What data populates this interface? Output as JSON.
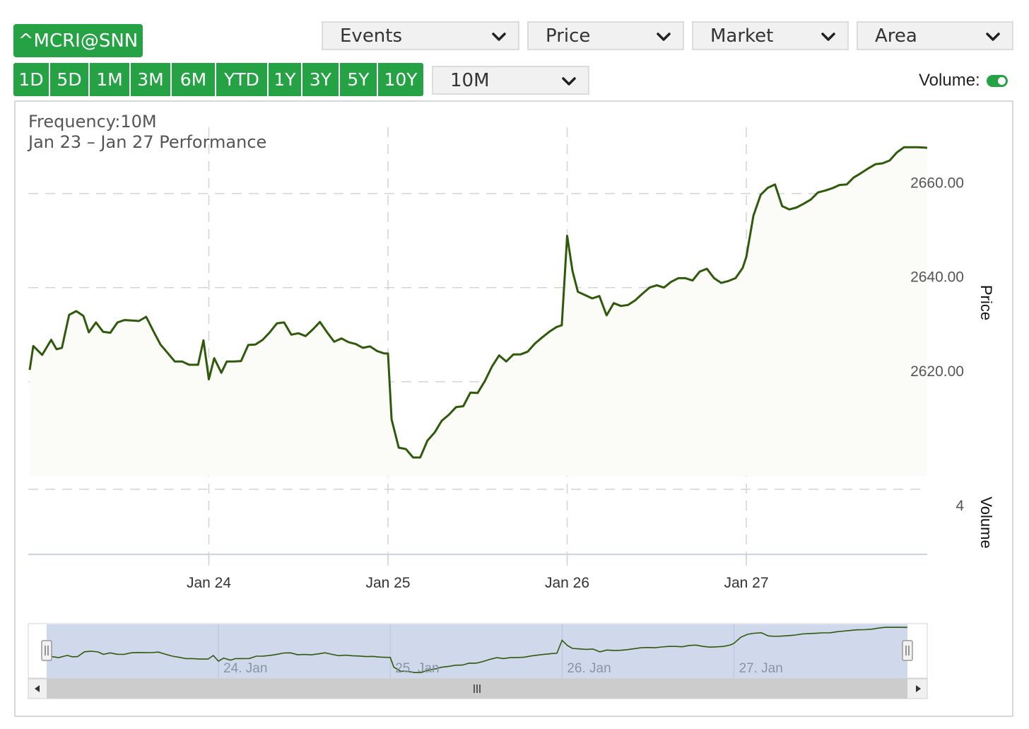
{
  "symbol": "^MCRI@SNN",
  "ranges": [
    "1D",
    "5D",
    "1M",
    "3M",
    "6M",
    "YTD",
    "1Y",
    "3Y",
    "5Y",
    "10Y"
  ],
  "dropdowns": {
    "events": "Events",
    "price": "Price",
    "market": "Market",
    "area": "Area",
    "frequency": "10M"
  },
  "volume_toggle": {
    "label": "Volume:",
    "on": true
  },
  "colors": {
    "accent": "#25a244",
    "line": "#2f5a0c",
    "navigator_fill": "#d0d9ec"
  },
  "chart_data": {
    "type": "area",
    "title": "Frequency:10M",
    "subtitle": "Jan 23 – Jan 27 Performance",
    "xlabel": "",
    "ylabel": "Price",
    "volume_label": "Volume",
    "volume_tick": "4",
    "ylim": [
      2600,
      2670
    ],
    "y_ticks": [
      "2620.00",
      "2640.00",
      "2660.00"
    ],
    "y_tick_values": [
      2620,
      2640,
      2660
    ],
    "x_ticks": [
      "Jan 24",
      "Jan 25",
      "Jan 26",
      "Jan 27"
    ],
    "x_tick_values": [
      1,
      2,
      3,
      4
    ],
    "grid": true,
    "navigator_labels": [
      "24. Jan",
      "25. Jan",
      "26. Jan",
      "27. Jan"
    ],
    "series": [
      {
        "values": [
          [
            0.0,
            2622.5
          ],
          [
            0.02,
            2627.6
          ],
          [
            0.07,
            2625.7
          ],
          [
            0.12,
            2628.9
          ],
          [
            0.15,
            2626.9
          ],
          [
            0.18,
            2627.2
          ],
          [
            0.22,
            2634.2
          ],
          [
            0.26,
            2635.0
          ],
          [
            0.3,
            2634.0
          ],
          [
            0.33,
            2630.5
          ],
          [
            0.37,
            2632.6
          ],
          [
            0.41,
            2630.6
          ],
          [
            0.45,
            2630.4
          ],
          [
            0.49,
            2632.6
          ],
          [
            0.53,
            2633.1
          ],
          [
            0.57,
            2633.0
          ],
          [
            0.61,
            2632.9
          ],
          [
            0.65,
            2633.8
          ],
          [
            0.69,
            2630.8
          ],
          [
            0.73,
            2627.9
          ],
          [
            0.77,
            2626.1
          ],
          [
            0.81,
            2624.3
          ],
          [
            0.85,
            2624.3
          ],
          [
            0.89,
            2623.6
          ],
          [
            0.94,
            2623.6
          ],
          [
            0.97,
            2628.8
          ],
          [
            1.0,
            2620.5
          ],
          [
            1.03,
            2625.0
          ],
          [
            1.07,
            2621.9
          ],
          [
            1.1,
            2624.3
          ],
          [
            1.14,
            2624.3
          ],
          [
            1.18,
            2624.4
          ],
          [
            1.22,
            2627.8
          ],
          [
            1.26,
            2627.9
          ],
          [
            1.3,
            2628.9
          ],
          [
            1.34,
            2630.5
          ],
          [
            1.38,
            2632.4
          ],
          [
            1.42,
            2632.6
          ],
          [
            1.46,
            2630.0
          ],
          [
            1.5,
            2630.3
          ],
          [
            1.54,
            2629.7
          ],
          [
            1.58,
            2631.1
          ],
          [
            1.62,
            2632.7
          ],
          [
            1.66,
            2630.5
          ],
          [
            1.7,
            2628.5
          ],
          [
            1.74,
            2629.2
          ],
          [
            1.78,
            2628.4
          ],
          [
            1.82,
            2628.0
          ],
          [
            1.86,
            2627.2
          ],
          [
            1.9,
            2627.5
          ],
          [
            1.94,
            2626.5
          ],
          [
            1.98,
            2626.0
          ],
          [
            2.0,
            2626.0
          ],
          [
            2.02,
            2612.0
          ],
          [
            2.06,
            2606.0
          ],
          [
            2.1,
            2605.7
          ],
          [
            2.14,
            2603.9
          ],
          [
            2.18,
            2603.9
          ],
          [
            2.22,
            2607.5
          ],
          [
            2.26,
            2609.2
          ],
          [
            2.3,
            2611.7
          ],
          [
            2.34,
            2613.0
          ],
          [
            2.38,
            2614.6
          ],
          [
            2.42,
            2614.8
          ],
          [
            2.46,
            2617.7
          ],
          [
            2.5,
            2617.6
          ],
          [
            2.54,
            2620.1
          ],
          [
            2.58,
            2623.2
          ],
          [
            2.62,
            2625.6
          ],
          [
            2.66,
            2624.3
          ],
          [
            2.7,
            2625.8
          ],
          [
            2.74,
            2625.8
          ],
          [
            2.78,
            2626.4
          ],
          [
            2.82,
            2628.1
          ],
          [
            2.86,
            2629.4
          ],
          [
            2.9,
            2630.6
          ],
          [
            2.94,
            2631.6
          ],
          [
            2.97,
            2632.0
          ],
          [
            3.0,
            2651.0
          ],
          [
            3.03,
            2643.5
          ],
          [
            3.06,
            2639.1
          ],
          [
            3.1,
            2638.4
          ],
          [
            3.14,
            2637.7
          ],
          [
            3.18,
            2638.2
          ],
          [
            3.22,
            2634.1
          ],
          [
            3.26,
            2636.7
          ],
          [
            3.3,
            2636.1
          ],
          [
            3.34,
            2636.3
          ],
          [
            3.38,
            2637.3
          ],
          [
            3.42,
            2638.7
          ],
          [
            3.46,
            2640.0
          ],
          [
            3.5,
            2640.5
          ],
          [
            3.54,
            2640.0
          ],
          [
            3.58,
            2641.2
          ],
          [
            3.62,
            2642.0
          ],
          [
            3.66,
            2642.0
          ],
          [
            3.7,
            2641.5
          ],
          [
            3.74,
            2643.4
          ],
          [
            3.78,
            2644.0
          ],
          [
            3.82,
            2642.0
          ],
          [
            3.86,
            2641.0
          ],
          [
            3.9,
            2641.4
          ],
          [
            3.94,
            2642.0
          ],
          [
            3.98,
            2644.2
          ],
          [
            4.0,
            2646.5
          ],
          [
            4.04,
            2655.3
          ],
          [
            4.08,
            2659.7
          ],
          [
            4.12,
            2661.2
          ],
          [
            4.16,
            2661.9
          ],
          [
            4.2,
            2657.3
          ],
          [
            4.24,
            2656.6
          ],
          [
            4.28,
            2657.0
          ],
          [
            4.32,
            2657.8
          ],
          [
            4.36,
            2658.7
          ],
          [
            4.4,
            2660.2
          ],
          [
            4.44,
            2660.6
          ],
          [
            4.48,
            2661.1
          ],
          [
            4.52,
            2661.8
          ],
          [
            4.56,
            2661.9
          ],
          [
            4.6,
            2663.4
          ],
          [
            4.64,
            2664.3
          ],
          [
            4.68,
            2665.3
          ],
          [
            4.72,
            2666.2
          ],
          [
            4.76,
            2666.4
          ],
          [
            4.8,
            2667.0
          ],
          [
            4.84,
            2668.7
          ],
          [
            4.88,
            2669.8
          ],
          [
            4.92,
            2669.8
          ],
          [
            4.96,
            2669.8
          ],
          [
            5.01,
            2669.7
          ]
        ]
      }
    ]
  }
}
